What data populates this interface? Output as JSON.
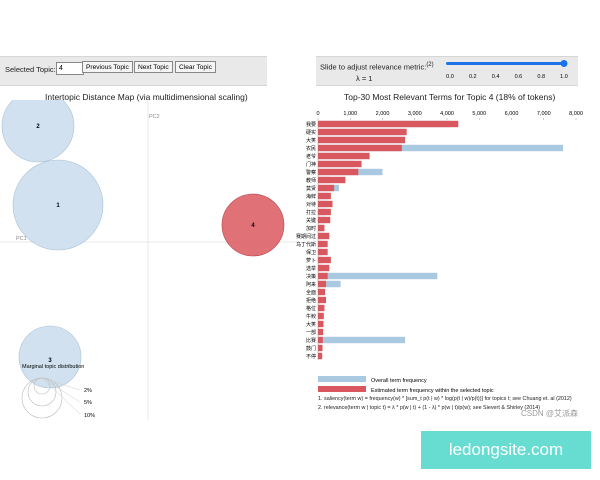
{
  "controls": {
    "selected_topic_label": "Selected Topic:",
    "selected_topic_value": "4",
    "previous_label": "Previous Topic",
    "next_label": "Next Topic",
    "clear_label": "Clear Topic"
  },
  "relevance": {
    "label": "Slide to adjust relevance metric:",
    "note": "(2)",
    "lambda_text": "λ = 1",
    "ticks": [
      "0.0",
      "0.2",
      "0.4",
      "0.6",
      "0.8",
      "1.0"
    ],
    "value": 1.0,
    "accent": "#1a73e8"
  },
  "map": {
    "title": "Intertopic Distance Map (via multidimensional scaling)",
    "pc1": "PC1",
    "pc2": "PC2",
    "topic_labels": [
      "1",
      "2",
      "3",
      "4"
    ],
    "marginal_title": "Marginal topic distribution",
    "marginal_labels": [
      "2%",
      "5%",
      "10%"
    ],
    "colors": {
      "default": "#c9dcec",
      "selected": "#d9585f"
    }
  },
  "chart_data": {
    "type": "bar",
    "title": "Top-30 Most Relevant Terms for Topic 4 (18% of tokens)",
    "xlim": [
      0,
      8000
    ],
    "xticks": [
      "0",
      "1,000",
      "2,000",
      "3,000",
      "4,000",
      "5,000",
      "6,000",
      "7,000",
      "8,000"
    ],
    "categories": [
      "我要",
      "硬实",
      "大笑",
      "农民",
      "老爷",
      "门神",
      "警察",
      "教师",
      "莫贤",
      "海鲜",
      "对待",
      "打拉",
      "关键",
      "加时",
      "赛期间过",
      "乌丁代斯",
      "保卫",
      "萝卜",
      "选举",
      "决策",
      "阿来",
      "全面",
      "拒绝",
      "格位",
      "牛鲛",
      "大笑",
      "一部",
      "比赛",
      "鼓门",
      "不停"
    ],
    "series": [
      {
        "name": "Overall term frequency",
        "color": "#a9c9e0",
        "values": [
          4100,
          2700,
          2700,
          7600,
          1400,
          1100,
          2000,
          350,
          650,
          300,
          280,
          250,
          230,
          200,
          170,
          160,
          150,
          140,
          130,
          3700,
          700,
          90,
          80,
          70,
          60,
          50,
          40,
          2700,
          30,
          20
        ]
      },
      {
        "name": "Estimated term frequency within the selected topic",
        "color": "#d9585f",
        "values": [
          4350,
          2750,
          2700,
          2600,
          1600,
          1350,
          1250,
          850,
          500,
          400,
          450,
          400,
          380,
          200,
          350,
          300,
          300,
          400,
          350,
          300,
          250,
          220,
          250,
          200,
          180,
          170,
          160,
          150,
          140,
          130
        ]
      }
    ]
  },
  "legend": {
    "overall": "Overall term frequency",
    "estimated": "Estimated term frequency within the selected topic"
  },
  "footnotes": {
    "saliency": "1. saliency(term w) = frequency(w) * [sum_t p(t | w) * log(p(t | w)/p(t))] for topics t; see Chuang et. al (2012)",
    "relevance": "2. relevance(term w | topic t) = λ * p(w | t) + (1 - λ) * p(w | t)/p(w); see Sievert & Shirley (2014)"
  },
  "watermarks": {
    "csdn": "CSDN @艾派森",
    "site": "ledongsite.com"
  }
}
